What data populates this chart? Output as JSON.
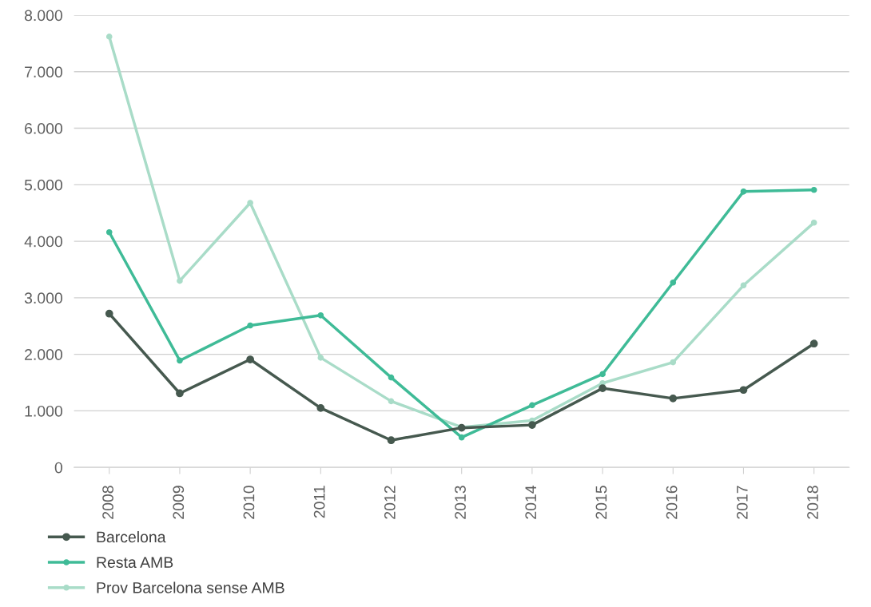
{
  "chart_data": {
    "type": "line",
    "categories": [
      "2008",
      "2009",
      "2010",
      "2011",
      "2012",
      "2013",
      "2014",
      "2015",
      "2016",
      "2017",
      "2018"
    ],
    "series": [
      {
        "name": "Barcelona",
        "color": "#46594f",
        "values": [
          2720,
          1310,
          1910,
          1050,
          480,
          700,
          750,
          1400,
          1220,
          1370,
          2190
        ]
      },
      {
        "name": "Resta AMB",
        "color": "#3fbb97",
        "values": [
          4160,
          1890,
          2510,
          2690,
          1590,
          530,
          1100,
          1650,
          3270,
          4880,
          4910
        ]
      },
      {
        "name": "Prov Barcelona sense AMB",
        "color": "#a9dcc8",
        "values": [
          7620,
          3300,
          4680,
          1940,
          1170,
          710,
          830,
          1490,
          1860,
          3220,
          4330
        ]
      }
    ],
    "ylim": [
      0,
      8000
    ],
    "yticks": [
      0,
      {
        "value": 1000,
        "label": "1.000"
      },
      {
        "value": 2000,
        "label": "2.000"
      },
      {
        "value": 3000,
        "label": "3.000"
      },
      {
        "value": 4000,
        "label": "4.000"
      },
      {
        "value": 5000,
        "label": "5.000"
      },
      {
        "value": 6000,
        "label": "6.000"
      },
      {
        "value": 7000,
        "label": "7.000"
      },
      {
        "value": 8000,
        "label": "8.000"
      }
    ],
    "grid": "y",
    "legend": "bottom left",
    "marker": "circle",
    "line_style": "solid"
  }
}
